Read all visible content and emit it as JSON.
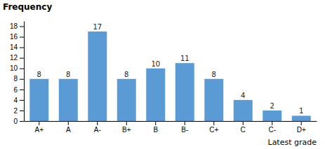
{
  "chart_data": {
    "type": "bar",
    "categories": [
      "A+",
      "A",
      "A-",
      "B+",
      "B",
      "B-",
      "C+",
      "C",
      "C-",
      "D+"
    ],
    "values": [
      8,
      8,
      17,
      8,
      10,
      11,
      8,
      4,
      2,
      1
    ],
    "color": "#5B9BD5",
    "ylabel": "Frequency",
    "xlabel": "Latest grade",
    "ylim": [
      0,
      19
    ],
    "yticks": [
      0,
      2,
      4,
      6,
      8,
      10,
      12,
      14,
      16,
      18
    ],
    "grid": false,
    "data_labels": true
  }
}
